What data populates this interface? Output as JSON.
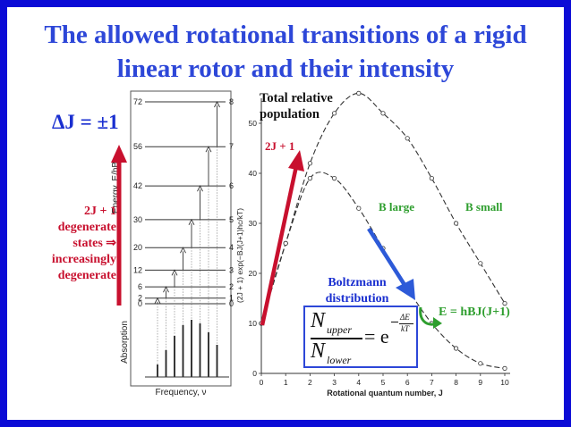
{
  "title": "The allowed rotational transitions of a rigid linear rotor and their intensity",
  "selection_rule": "ΔJ = ±1",
  "degeneracy_note": "2J + 1 degenerate states ⇒ increasingly degenerate",
  "energy_diagram": {
    "y_axis_label": "Energy, E/hB",
    "x_axis_label": "Frequency, ν",
    "absorption_label": "Absorption",
    "energy_values": [
      "72",
      "56",
      "42",
      "30",
      "20",
      "12",
      "6",
      "2",
      "0"
    ],
    "j_values": [
      "8",
      "7",
      "6",
      "5",
      "4",
      "3",
      "2",
      "1",
      "0"
    ]
  },
  "population_plot": {
    "label_total": "Total relative population",
    "label_2j": "2J + 1",
    "label_b_large": "B large",
    "label_b_small": "B small",
    "y_axis_label": "(2J + 1) exp(−BJ(J+1)hc/kT)",
    "x_axis_label": "Rotational quantum number, J",
    "x_ticks": [
      "0",
      "1",
      "2",
      "3",
      "4",
      "5",
      "6",
      "7",
      "8",
      "9",
      "10"
    ],
    "y_ticks": [
      "0",
      "10",
      "20",
      "30",
      "40",
      "50"
    ]
  },
  "boltzmann": {
    "label": "Boltzmann distribution",
    "numerator": "N",
    "numerator_sub": "upper",
    "denominator": "N",
    "denominator_sub": "lower",
    "equals": "= e",
    "exp_numerator": "ΔE",
    "exp_denominator": "kT"
  },
  "energy_expression": "E = hBJ(J+1)",
  "chart_data": [
    {
      "type": "line",
      "x": [
        0,
        1,
        2,
        3,
        4,
        5,
        6,
        7,
        8,
        9,
        10
      ],
      "series": [
        {
          "name": "B small",
          "values": [
            10,
            26,
            42,
            52,
            56,
            52,
            47,
            39,
            30,
            22,
            14
          ]
        },
        {
          "name": "B large",
          "values": [
            10,
            26,
            39,
            39,
            33,
            25,
            17,
            10,
            5,
            2,
            1
          ]
        }
      ],
      "xlabel": "Rotational quantum number, J",
      "ylabel": "(2J + 1) exp(−BJ(J+1)hc/kT)",
      "xlim": [
        0,
        10
      ],
      "ylim": [
        0,
        55
      ]
    }
  ],
  "colors": {
    "frame": "#0b0bd6",
    "title": "#2d47d8",
    "red": "#c8102e",
    "green": "#2e9e2e",
    "blue_arrow": "#2d5ad8"
  }
}
